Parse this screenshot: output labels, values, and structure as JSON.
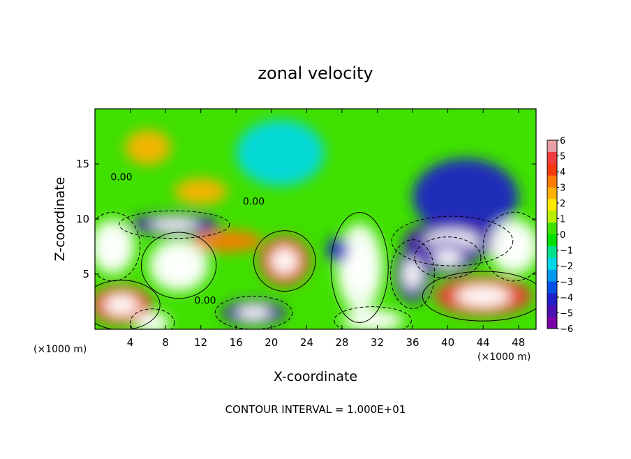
{
  "chart_data": {
    "type": "heatmap",
    "title": "zonal velocity",
    "xlabel": "X-coordinate",
    "ylabel": "Z-coordinate",
    "x_unit_left": "(×1000 m)",
    "x_unit_right": "(×1000 m)",
    "footer": "CONTOUR INTERVAL = 1.000E+01",
    "xlim": [
      0,
      50
    ],
    "ylim": [
      0,
      20
    ],
    "x_ticks": [
      4,
      8,
      12,
      16,
      20,
      24,
      28,
      32,
      36,
      40,
      44,
      48
    ],
    "y_ticks": [
      5,
      10,
      15
    ],
    "colorbar": {
      "min": -6,
      "max": 6,
      "ticks": [
        6,
        5,
        4,
        3,
        2,
        1,
        0,
        -1,
        -2,
        -3,
        -4,
        -5,
        -6
      ],
      "colors": [
        "#e8a0a8",
        "#f03e3e",
        "#f53a10",
        "#ff7a00",
        "#ffb000",
        "#ffe800",
        "#b8f000",
        "#3ee000",
        "#00e000",
        "#00e08a",
        "#00d8e8",
        "#0098f0",
        "#0050e8",
        "#2020c8",
        "#4a10b0",
        "#7a00a8"
      ]
    },
    "contour_labels": [
      {
        "text": "0.00",
        "x": 18,
        "z": 11.3
      },
      {
        "text": "0.00",
        "x": 12.5,
        "z": 2.3
      },
      {
        "text": "0.00",
        "x": 3.0,
        "z": 13.5
      }
    ],
    "features": [
      {
        "value": 6,
        "x": 9.5,
        "z": 5.8,
        "rx": 3.4,
        "rz": 2.4
      },
      {
        "value": 6,
        "x": 30.0,
        "z": 5.6,
        "rx": 2.6,
        "rz": 4.0
      },
      {
        "value": 5,
        "x": 21.5,
        "z": 6.2,
        "rx": 2.8,
        "rz": 2.2
      },
      {
        "value": 3,
        "x": 6.0,
        "z": 16.5,
        "rx": 2.6,
        "rz": 1.6
      },
      {
        "value": 4,
        "x": 15.0,
        "z": 8.0,
        "rx": 4.0,
        "rz": 1.0
      },
      {
        "value": 5,
        "x": 44.0,
        "z": 3.0,
        "rx": 5.5,
        "rz": 1.8
      },
      {
        "value": 5,
        "x": 3.0,
        "z": 2.2,
        "rx": 3.5,
        "rz": 1.8
      },
      {
        "value": 3,
        "x": 12.0,
        "z": 12.5,
        "rx": 3.0,
        "rz": 1.2
      },
      {
        "value": -2,
        "x": 21.0,
        "z": 16.0,
        "rx": 5.0,
        "rz": 3.0
      },
      {
        "value": -4,
        "x": 42.0,
        "z": 12.0,
        "rx": 6.0,
        "rz": 3.5
      },
      {
        "value": -5,
        "x": 40.5,
        "z": 8.0,
        "rx": 5.5,
        "rz": 1.8
      },
      {
        "value": -6,
        "x": 2.0,
        "z": 7.5,
        "rx": 2.5,
        "rz": 2.5
      },
      {
        "value": -6,
        "x": 47.5,
        "z": 7.5,
        "rx": 2.8,
        "rz": 2.5
      },
      {
        "value": -5,
        "x": 9.0,
        "z": 9.5,
        "rx": 5.0,
        "rz": 1.0
      },
      {
        "value": -5,
        "x": 18.0,
        "z": 1.5,
        "rx": 3.5,
        "rz": 1.2
      },
      {
        "value": -5,
        "x": 36.0,
        "z": 5.0,
        "rx": 2.0,
        "rz": 2.5
      },
      {
        "value": -6,
        "x": 6.5,
        "z": 0.6,
        "rx": 2.0,
        "rz": 1.0
      },
      {
        "value": -4,
        "x": 27.5,
        "z": 7.2,
        "rx": 1.2,
        "rz": 1.2
      },
      {
        "value": -6,
        "x": 31.5,
        "z": 0.8,
        "rx": 3.5,
        "rz": 1.0
      },
      {
        "value": -5,
        "x": 40.0,
        "z": 6.5,
        "rx": 3.0,
        "rz": 1.5
      }
    ]
  }
}
